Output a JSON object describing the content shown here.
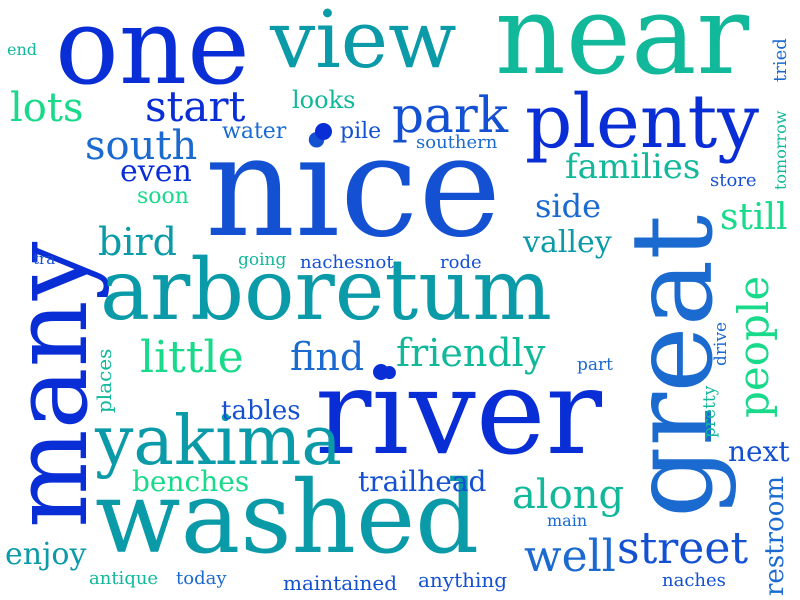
{
  "colors": {
    "royal_blue": "#0a2ed6",
    "blue": "#1450d2",
    "medium_blue": "#1a6ad0",
    "teal": "#0a9aa8",
    "sea_green": "#12b89a",
    "spring_green": "#19d98a"
  },
  "words": [
    "nice",
    "many",
    "great",
    "one",
    "near",
    "river",
    "washed",
    "arboretum",
    "plenty",
    "view",
    "yakima",
    "street",
    "park",
    "start",
    "little",
    "people",
    "south",
    "families",
    "along",
    "well",
    "friendly",
    "find",
    "bird",
    "valley",
    "lots",
    "still",
    "side",
    "even",
    "enjoy",
    "benches",
    "trailhead",
    "tables",
    "next",
    "looks",
    "water",
    "pile",
    "southern",
    "soon",
    "going",
    "nachesnot",
    "rode",
    "part",
    "pretty",
    "drive",
    "store",
    "tomorrow",
    "tried",
    "places",
    "restroom",
    "anything",
    "antique",
    "today",
    "maintained",
    "naches",
    "main",
    "end",
    "tra"
  ]
}
